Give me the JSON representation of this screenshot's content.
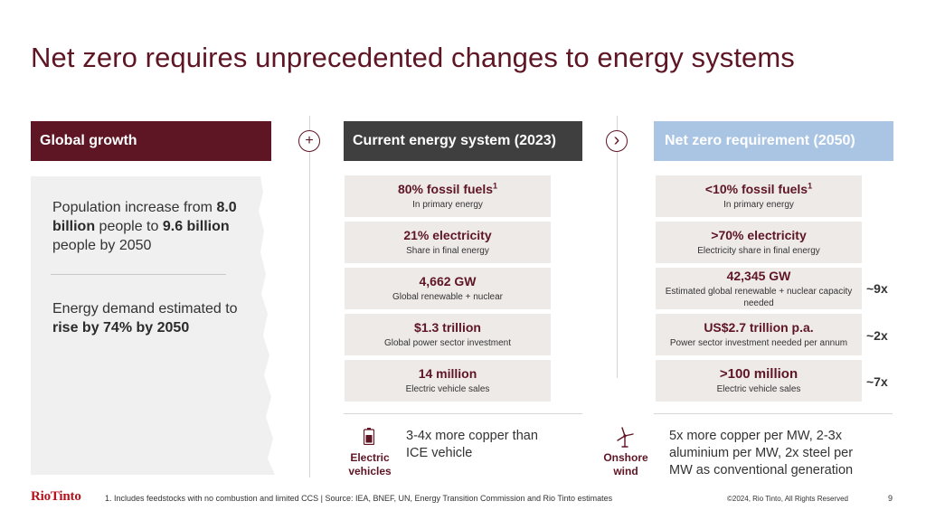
{
  "title": "Net zero requires unprecedented changes to energy systems",
  "headers": {
    "growth": "Global growth",
    "current": "Current energy system (2023)",
    "netzero": "Net zero requirement (2050)"
  },
  "connectors": {
    "plus": "+",
    "arrow": "›"
  },
  "growth": {
    "population": {
      "pre": "Population increase from ",
      "b1": "8.0 billion",
      "mid": " people to ",
      "b2": "9.6 billion",
      "post": " people by 2050"
    },
    "energy": {
      "pre": "Energy demand estimated to ",
      "b1": "rise by 74% by 2050"
    }
  },
  "current": [
    {
      "value": "80% fossil fuels",
      "sup": "1",
      "sub": "In primary energy"
    },
    {
      "value": "21% electricity",
      "sup": "",
      "sub": "Share in final energy"
    },
    {
      "value": "4,662 GW",
      "sup": "",
      "sub": "Global renewable + nuclear"
    },
    {
      "value": "$1.3 trillion",
      "sup": "",
      "sub": "Global power sector investment"
    },
    {
      "value": "14 million",
      "sup": "",
      "sub": "Electric vehicle sales"
    }
  ],
  "netzero": [
    {
      "value": "<10% fossil fuels",
      "sup": "1",
      "sub": "In primary energy"
    },
    {
      "value": ">70% electricity",
      "sup": "",
      "sub": "Electricity share in final energy"
    },
    {
      "value": "42,345 GW",
      "sup": "",
      "sub": "Estimated global renewable + nuclear capacity needed"
    },
    {
      "value": "US$2.7 trillion p.a.",
      "sup": "",
      "sub": "Power sector investment needed per annum"
    },
    {
      "value": ">100 million",
      "sup": "",
      "sub": "Electric vehicle sales"
    }
  ],
  "multipliers": {
    "gw": "~9x",
    "invest": "~2x",
    "ev": "~7x"
  },
  "bottom": {
    "ev": {
      "label_line1": "Electric",
      "label_line2": "vehicles",
      "text": "3-4x more copper than ICE vehicle",
      "icon": "battery-icon"
    },
    "wind": {
      "label_line1": "Onshore",
      "label_line2": "wind",
      "text": "5x more copper per MW, 2-3x aluminium per MW, 2x steel per MW as conventional generation",
      "icon": "wind-turbine-icon"
    }
  },
  "footer": {
    "logo": "RioTinto",
    "footnote": "1. Includes feedstocks with no combustion and limited CCS | Source: IEA, BNEF, UN, Energy Transition Commission and Rio Tinto estimates",
    "copyright": "©2024, Rio Tinto, All Rights Reserved",
    "page": "9"
  },
  "colors": {
    "maroon": "#5e1524",
    "dark_grey": "#3f3f3f",
    "light_blue": "#a9c5e3",
    "box_bg": "#eeeae8",
    "logo_red": "#b5121b"
  }
}
